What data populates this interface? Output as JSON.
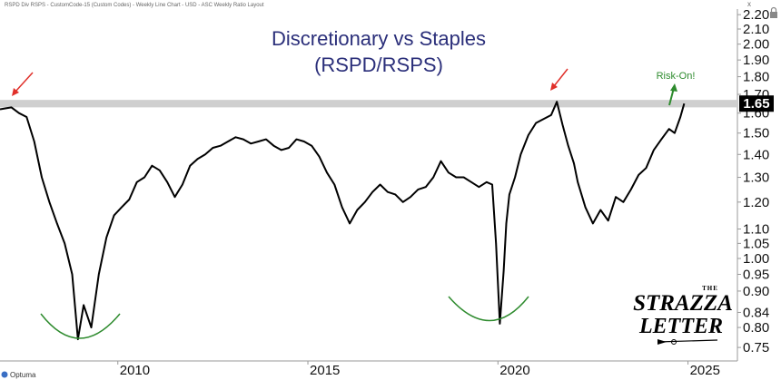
{
  "header": {
    "info": "RSPD Div RSPS - CustomCode-15 (Custom Codes) - Weekly Line Chart - USD - ASC Weekly Ratio Layout",
    "close_glyph": "x"
  },
  "colors": {
    "title": "#2b2f7a",
    "line": "#000000",
    "resistance_band": "#cfcfcf",
    "arrow_red": "#e0302a",
    "arrow_green": "#2e8b2e",
    "arc_green": "#2e8b2e",
    "last_price_box": "#000000"
  },
  "chart_data": {
    "type": "line",
    "title": "Discretionary vs Staples",
    "subtitle": "(RSPD/RSPS)",
    "scale": "log",
    "ylim": [
      0.735,
      2.24
    ],
    "xlim": [
      2006.9,
      2026.3
    ],
    "y_ticks": [
      "2.20",
      "2.10",
      "2.00",
      "1.90",
      "1.80",
      "1.70",
      "1.60",
      "1.50",
      "1.40",
      "1.30",
      "1.20",
      "1.10",
      "1.05",
      "1.00",
      "0.95",
      "0.90",
      "0.84",
      "0.80",
      "0.75"
    ],
    "x_ticks": [
      "2010",
      "2015",
      "2020",
      "2025"
    ],
    "last_value": "1.65",
    "resistance_band": [
      1.63,
      1.67
    ],
    "series": [
      {
        "x": [
          2006.9,
          2007.2,
          2007.4,
          2007.6,
          2007.8,
          2008.0,
          2008.2,
          2008.4,
          2008.6,
          2008.8,
          2008.95,
          2009.1,
          2009.3,
          2009.5,
          2009.7,
          2009.9,
          2010.1,
          2010.3,
          2010.5,
          2010.7,
          2010.9,
          2011.1,
          2011.3,
          2011.5,
          2011.7,
          2011.9,
          2012.1,
          2012.3,
          2012.5,
          2012.7,
          2012.9,
          2013.1,
          2013.3,
          2013.5,
          2013.7,
          2013.9,
          2014.1,
          2014.3,
          2014.5,
          2014.7,
          2014.9,
          2015.1,
          2015.3,
          2015.5,
          2015.7,
          2015.9,
          2016.1,
          2016.3,
          2016.5,
          2016.7,
          2016.9,
          2017.1,
          2017.3,
          2017.5,
          2017.7,
          2017.9,
          2018.1,
          2018.3,
          2018.5,
          2018.7,
          2018.9,
          2019.1,
          2019.3,
          2019.5,
          2019.7,
          2019.85,
          2019.95,
          2020.05,
          2020.15,
          2020.22,
          2020.3,
          2020.45,
          2020.6,
          2020.8,
          2021.0,
          2021.2,
          2021.4,
          2021.55,
          2021.7,
          2021.85,
          2022.0,
          2022.1,
          2022.3,
          2022.5,
          2022.7,
          2022.9,
          2023.1,
          2023.3,
          2023.5,
          2023.7,
          2023.9,
          2024.1,
          2024.3,
          2024.5,
          2024.65,
          2024.8,
          2024.9
        ],
        "y": [
          1.62,
          1.63,
          1.6,
          1.58,
          1.46,
          1.3,
          1.2,
          1.12,
          1.05,
          0.95,
          0.77,
          0.86,
          0.8,
          0.95,
          1.07,
          1.15,
          1.18,
          1.21,
          1.28,
          1.3,
          1.35,
          1.33,
          1.28,
          1.22,
          1.27,
          1.35,
          1.38,
          1.4,
          1.43,
          1.44,
          1.46,
          1.48,
          1.47,
          1.45,
          1.46,
          1.47,
          1.44,
          1.42,
          1.43,
          1.47,
          1.46,
          1.44,
          1.39,
          1.32,
          1.27,
          1.18,
          1.12,
          1.17,
          1.2,
          1.24,
          1.27,
          1.24,
          1.23,
          1.2,
          1.22,
          1.25,
          1.26,
          1.3,
          1.37,
          1.32,
          1.3,
          1.3,
          1.28,
          1.26,
          1.28,
          1.27,
          1.05,
          0.81,
          0.96,
          1.12,
          1.23,
          1.3,
          1.4,
          1.49,
          1.55,
          1.57,
          1.59,
          1.66,
          1.54,
          1.44,
          1.36,
          1.28,
          1.18,
          1.12,
          1.17,
          1.13,
          1.22,
          1.2,
          1.25,
          1.31,
          1.34,
          1.42,
          1.47,
          1.52,
          1.5,
          1.58,
          1.65
        ]
      }
    ],
    "annotations": {
      "risk_on_label": "Risk-On!"
    }
  },
  "branding": {
    "logo_line1": "THE",
    "logo_line2": "STRAZZA",
    "logo_line3": "LETTER",
    "footer_brand": "Optuma"
  }
}
